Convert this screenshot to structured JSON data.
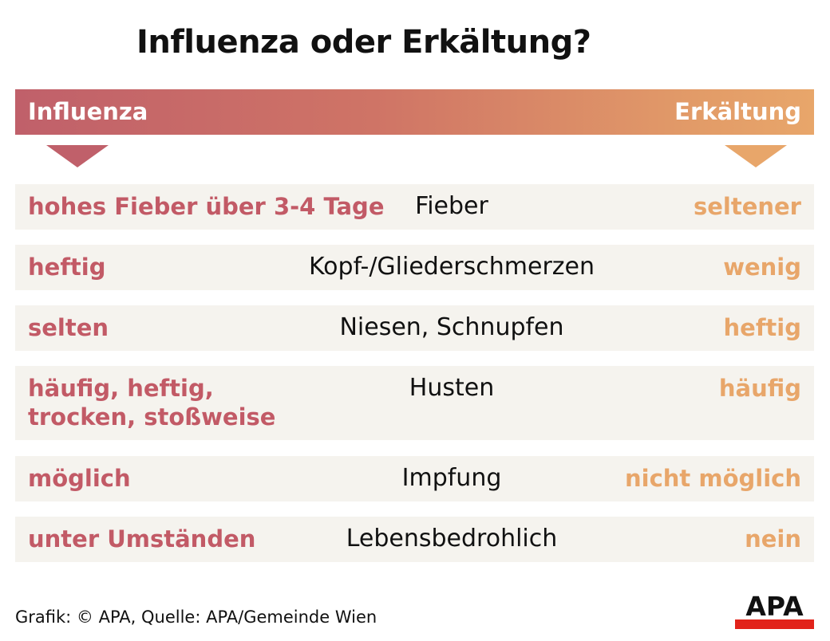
{
  "title": "Influenza oder Erkältung?",
  "header": {
    "left_label": "Influenza",
    "right_label": "Erkältung",
    "colors": {
      "influenza": "#c25a66",
      "erkaeltung": "#e8a66a"
    }
  },
  "rows": [
    {
      "influenza": [
        "hohes Fieber über 3-4 Tage"
      ],
      "symptom": "Fieber",
      "erkaeltung": "seltener"
    },
    {
      "influenza": [
        "heftig"
      ],
      "symptom": "Kopf-/Gliederschmerzen",
      "erkaeltung": "wenig"
    },
    {
      "influenza": [
        "selten"
      ],
      "symptom": "Niesen, Schnupfen",
      "erkaeltung": "heftig"
    },
    {
      "influenza": [
        "häufig, heftig,",
        "trocken, stoßweise"
      ],
      "symptom": "Husten",
      "erkaeltung": "häufig"
    },
    {
      "influenza": [
        "möglich"
      ],
      "symptom": "Impfung",
      "erkaeltung": "nicht möglich"
    },
    {
      "influenza": [
        "unter Umständen"
      ],
      "symptom": "Lebensbedrohlich",
      "erkaeltung": "nein"
    }
  ],
  "footer": {
    "credit": "Grafik: © APA, Quelle: APA/Gemeinde Wien"
  },
  "logo": {
    "text": "APA",
    "icon": "apa-logo"
  }
}
